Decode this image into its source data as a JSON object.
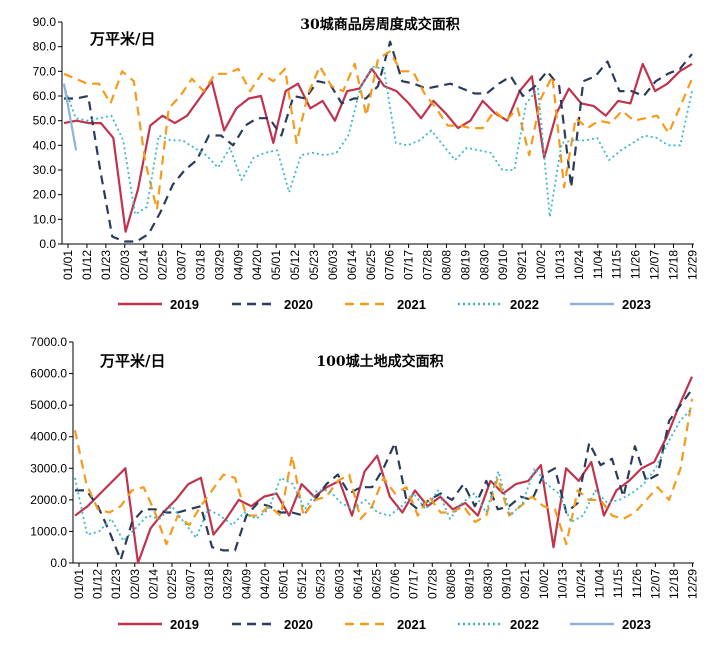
{
  "chart_data": [
    {
      "type": "line",
      "title": "30城商品房周度成交面积",
      "unit_label": "万平米/日",
      "ylim": [
        0,
        90
      ],
      "yticks": [
        "0.0",
        "10.0",
        "20.0",
        "30.0",
        "40.0",
        "50.0",
        "60.0",
        "70.0",
        "80.0",
        "90.0"
      ],
      "xtick_labels": [
        "01/01",
        "01/12",
        "01/23",
        "02/03",
        "02/14",
        "02/25",
        "03/07",
        "03/18",
        "03/29",
        "04/09",
        "04/20",
        "05/01",
        "05/12",
        "05/23",
        "06/03",
        "06/14",
        "06/25",
        "07/06",
        "07/17",
        "07/28",
        "08/08",
        "08/19",
        "08/30",
        "09/10",
        "09/21",
        "10/02",
        "10/13",
        "10/24",
        "11/04",
        "11/15",
        "11/26",
        "12/07",
        "12/18",
        "12/29"
      ],
      "series": [
        {
          "name": "2019",
          "color": "#c0334d",
          "dash": "solid",
          "values": [
            49,
            50,
            49,
            49,
            43,
            5,
            22,
            48,
            52,
            49,
            52,
            59,
            66,
            46,
            55,
            59,
            60,
            41,
            62,
            65,
            55,
            58,
            50,
            62,
            63,
            71,
            64,
            62,
            57,
            51,
            58,
            53,
            47,
            50,
            58,
            53,
            50,
            62,
            68,
            35,
            53,
            63,
            57,
            56,
            52,
            58,
            57,
            73,
            62,
            65,
            70,
            73
          ]
        },
        {
          "name": "2020",
          "color": "#2b3b5c",
          "dash": "dashed",
          "values": [
            59,
            59,
            60,
            30,
            3,
            1,
            1,
            4,
            13,
            24,
            30,
            34,
            44,
            44,
            40,
            48,
            51,
            51,
            44,
            60,
            59,
            66,
            65,
            57,
            59,
            59,
            64,
            82,
            66,
            65,
            63,
            64,
            65,
            63,
            61,
            61,
            65,
            68,
            60,
            64,
            70,
            64,
            23,
            66,
            68,
            74,
            62,
            62,
            60,
            66,
            69,
            71,
            77
          ]
        },
        {
          "name": "2021",
          "color": "#f59a1b",
          "dash": "dashed",
          "values": [
            69,
            67,
            65,
            65,
            57,
            70,
            66,
            33,
            14,
            55,
            60,
            67,
            62,
            69,
            69,
            71,
            62,
            69,
            66,
            71,
            41,
            61,
            72,
            64,
            62,
            73,
            52,
            75,
            78,
            70,
            70,
            61,
            55,
            48,
            48,
            47,
            47,
            54,
            50,
            55,
            36,
            59,
            68,
            23,
            51,
            47,
            50,
            49,
            54,
            50,
            51,
            52,
            45,
            56,
            67
          ]
        },
        {
          "name": "2022",
          "color": "#3bb8c9",
          "dash": "dotted",
          "values": [
            64,
            51,
            50,
            51,
            52,
            42,
            12,
            15,
            44,
            42,
            42,
            39,
            36,
            31,
            39,
            26,
            35,
            37,
            38,
            21,
            36,
            37,
            36,
            37,
            44,
            63,
            72,
            71,
            41,
            40,
            42,
            46,
            40,
            34,
            39,
            38,
            37,
            30,
            30,
            57,
            63,
            11,
            41,
            42,
            42,
            43,
            34,
            38,
            41,
            44,
            43,
            40,
            40,
            62
          ]
        },
        {
          "name": "2023",
          "color": "#8fb3dc",
          "dash": "solid",
          "values": [
            65,
            38
          ]
        }
      ]
    },
    {
      "type": "line",
      "title": "100城土地成交面积",
      "unit_label": "万平米/日",
      "ylim": [
        0,
        7000
      ],
      "yticks": [
        "0.0",
        "1000.0",
        "2000.0",
        "3000.0",
        "4000.0",
        "5000.0",
        "6000.0",
        "7000.0"
      ],
      "xtick_labels": [
        "01/01",
        "01/12",
        "01/23",
        "02/03",
        "02/14",
        "02/25",
        "03/07",
        "03/18",
        "03/29",
        "04/09",
        "04/20",
        "05/01",
        "05/12",
        "05/23",
        "06/03",
        "06/14",
        "06/25",
        "07/06",
        "07/17",
        "07/28",
        "08/08",
        "08/19",
        "08/30",
        "09/10",
        "09/21",
        "10/02",
        "10/13",
        "10/24",
        "11/04",
        "11/15",
        "11/26",
        "12/07",
        "12/18",
        "12/29"
      ],
      "series": [
        {
          "name": "2019",
          "color": "#c0334d",
          "dash": "solid",
          "values": [
            1500,
            1800,
            2200,
            2600,
            3000,
            0,
            1100,
            1600,
            2000,
            2500,
            2700,
            900,
            1400,
            2000,
            1800,
            2100,
            2200,
            1500,
            2500,
            2100,
            2400,
            2600,
            1500,
            2900,
            3400,
            2100,
            1600,
            2300,
            1800,
            2100,
            1700,
            1900,
            1500,
            2600,
            2200,
            2500,
            2600,
            3100,
            500,
            3000,
            2600,
            3200,
            1500,
            2300,
            2600,
            3000,
            3200,
            4000,
            5000,
            5900
          ]
        },
        {
          "name": "2020",
          "color": "#2b3b5c",
          "dash": "dashed",
          "values": [
            2300,
            2300,
            1800,
            1000,
            100,
            1300,
            1700,
            1700,
            1600,
            1600,
            1700,
            1800,
            500,
            400,
            400,
            1500,
            1900,
            1800,
            1600,
            1600,
            1500,
            2000,
            2500,
            2800,
            2200,
            2400,
            2400,
            3000,
            3800,
            2000,
            1700,
            2000,
            2200,
            2000,
            2500,
            1800,
            2600,
            1700,
            1800,
            2100,
            2000,
            2800,
            3000,
            1600,
            1900,
            3800,
            3100,
            3300,
            2100,
            3700,
            2600,
            2800,
            4500,
            5000,
            5500
          ]
        },
        {
          "name": "2021",
          "color": "#f59a1b",
          "dash": "dashed",
          "values": [
            4200,
            2500,
            1700,
            1600,
            1800,
            2300,
            2400,
            1600,
            600,
            1500,
            1200,
            1800,
            2300,
            2800,
            2700,
            1500,
            1500,
            1800,
            1500,
            3400,
            1500,
            2000,
            2100,
            2600,
            2800,
            1400,
            1800,
            2700,
            2200,
            2400,
            1500,
            2100,
            1600,
            1600,
            1800,
            1300,
            1500,
            2700,
            1500,
            1800,
            2100,
            1800,
            1700,
            600,
            2300,
            2000,
            2000,
            1500,
            1400,
            1600,
            2000,
            2400,
            2000,
            3000,
            5200
          ]
        },
        {
          "name": "2022",
          "color": "#3bb8c9",
          "dash": "dotted",
          "values": [
            2700,
            900,
            1000,
            1400,
            700,
            1100,
            1500,
            1400,
            1800,
            1300,
            800,
            1700,
            1500,
            1200,
            1600,
            1400,
            1700,
            2700,
            2500,
            1700,
            2300,
            2300,
            1900,
            1700,
            2000,
            1600,
            1500,
            1800,
            2200,
            1700,
            2300,
            1400,
            1900,
            2200,
            1600,
            2900,
            1500,
            1900,
            3000,
            2500,
            2200,
            1300,
            1500,
            2300,
            1900,
            2000,
            2200,
            2500,
            3000,
            3800,
            4500,
            4900
          ]
        },
        {
          "name": "2023",
          "color": "#8fb3dc",
          "dash": "solid",
          "values": []
        }
      ]
    }
  ]
}
